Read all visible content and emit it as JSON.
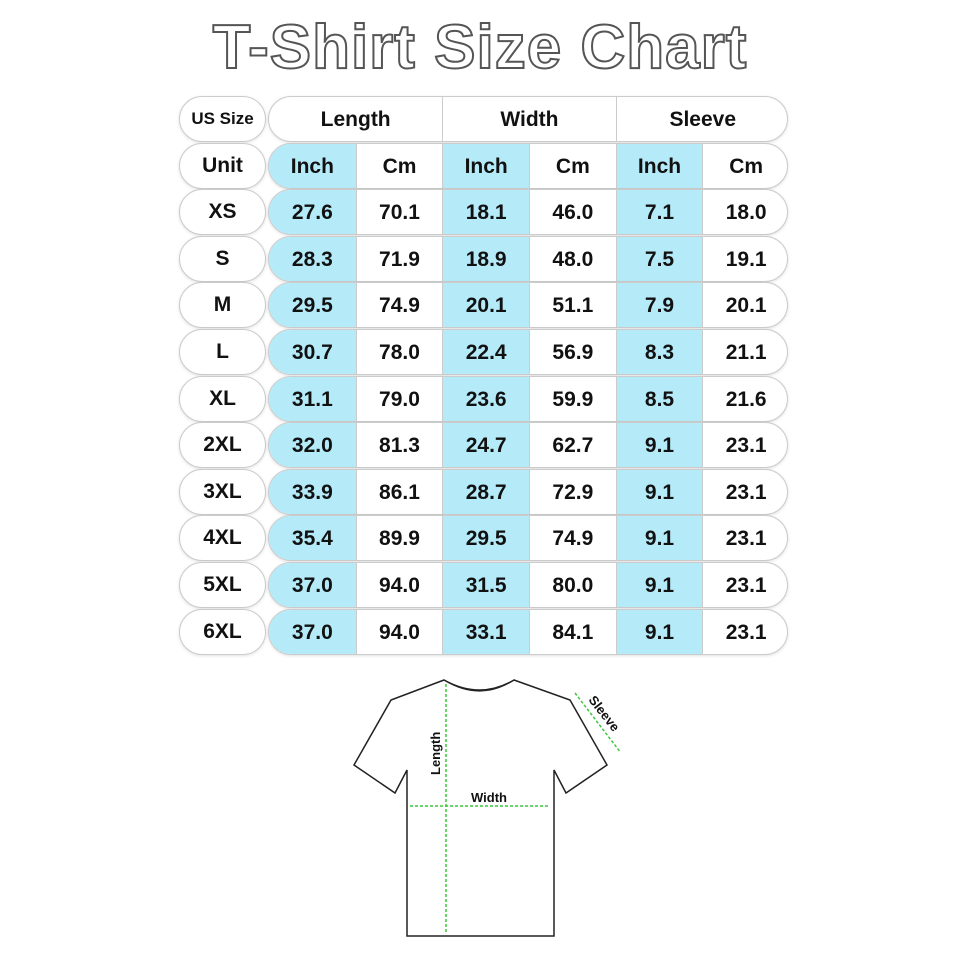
{
  "title": "T-Shirt Size Chart",
  "header": {
    "size_label": "US Size",
    "groups": [
      "Length",
      "Width",
      "Sleeve"
    ]
  },
  "units": {
    "label": "Unit",
    "cols": [
      "Inch",
      "Cm",
      "Inch",
      "Cm",
      "Inch",
      "Cm"
    ]
  },
  "rows": [
    {
      "size": "XS",
      "values": [
        "27.6",
        "70.1",
        "18.1",
        "46.0",
        "7.1",
        "18.0"
      ]
    },
    {
      "size": "S",
      "values": [
        "28.3",
        "71.9",
        "18.9",
        "48.0",
        "7.5",
        "19.1"
      ]
    },
    {
      "size": "M",
      "values": [
        "29.5",
        "74.9",
        "20.1",
        "51.1",
        "7.9",
        "20.1"
      ]
    },
    {
      "size": "L",
      "values": [
        "30.7",
        "78.0",
        "22.4",
        "56.9",
        "8.3",
        "21.1"
      ]
    },
    {
      "size": "XL",
      "values": [
        "31.1",
        "79.0",
        "23.6",
        "59.9",
        "8.5",
        "21.6"
      ]
    },
    {
      "size": "2XL",
      "values": [
        "32.0",
        "81.3",
        "24.7",
        "62.7",
        "9.1",
        "23.1"
      ]
    },
    {
      "size": "3XL",
      "values": [
        "33.9",
        "86.1",
        "28.7",
        "72.9",
        "9.1",
        "23.1"
      ]
    },
    {
      "size": "4XL",
      "values": [
        "35.4",
        "89.9",
        "29.5",
        "74.9",
        "9.1",
        "23.1"
      ]
    },
    {
      "size": "5XL",
      "values": [
        "37.0",
        "94.0",
        "31.5",
        "80.0",
        "9.1",
        "23.1"
      ]
    },
    {
      "size": "6XL",
      "values": [
        "37.0",
        "94.0",
        "33.1",
        "84.1",
        "9.1",
        "23.1"
      ]
    }
  ],
  "diagram": {
    "length_label": "Length",
    "width_label": "Width",
    "sleeve_label": "Sleeve"
  },
  "colors": {
    "inch_column": "#b5ebf9",
    "measure_line": "#3cc83c",
    "outline": "#555555"
  }
}
